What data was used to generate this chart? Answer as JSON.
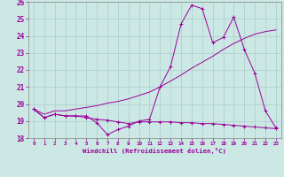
{
  "xlabel": "Windchill (Refroidissement éolien,°C)",
  "background_color": "#cce8e4",
  "grid_color": "#aacccc",
  "line_color": "#990099",
  "xlim": [
    -0.5,
    23.5
  ],
  "ylim": [
    18,
    26
  ],
  "yticks": [
    18,
    19,
    20,
    21,
    22,
    23,
    24,
    25,
    26
  ],
  "xticks": [
    0,
    1,
    2,
    3,
    4,
    5,
    6,
    7,
    8,
    9,
    10,
    11,
    12,
    13,
    14,
    15,
    16,
    17,
    18,
    19,
    20,
    21,
    22,
    23
  ],
  "series1_x": [
    0,
    1,
    2,
    3,
    4,
    5,
    6,
    7,
    8,
    9,
    10,
    11,
    12,
    13,
    14,
    15,
    16,
    17,
    18,
    19,
    20,
    21,
    22,
    23
  ],
  "series1_y": [
    19.7,
    19.2,
    19.4,
    19.3,
    19.3,
    19.3,
    18.9,
    18.2,
    18.5,
    18.7,
    19.0,
    19.1,
    21.0,
    22.2,
    24.7,
    25.8,
    25.6,
    23.6,
    23.9,
    25.1,
    23.2,
    21.8,
    19.6,
    18.6
  ],
  "series2_x": [
    0,
    1,
    2,
    3,
    4,
    5,
    6,
    7,
    8,
    9,
    10,
    11,
    12,
    13,
    14,
    15,
    16,
    17,
    18,
    19,
    20,
    21,
    22,
    23
  ],
  "series2_y": [
    19.7,
    19.2,
    19.4,
    19.3,
    19.3,
    19.2,
    19.1,
    19.05,
    18.95,
    18.85,
    18.95,
    18.95,
    18.95,
    18.95,
    18.9,
    18.9,
    18.85,
    18.85,
    18.8,
    18.75,
    18.7,
    18.65,
    18.6,
    18.55
  ],
  "series3_x": [
    0,
    1,
    2,
    3,
    4,
    5,
    6,
    7,
    8,
    9,
    10,
    11,
    12,
    13,
    14,
    15,
    16,
    17,
    18,
    19,
    20,
    21,
    22,
    23
  ],
  "series3_y": [
    19.7,
    19.4,
    19.6,
    19.6,
    19.7,
    19.8,
    19.9,
    20.05,
    20.15,
    20.3,
    20.5,
    20.7,
    21.0,
    21.35,
    21.7,
    22.1,
    22.45,
    22.8,
    23.2,
    23.55,
    23.85,
    24.1,
    24.25,
    24.35
  ]
}
